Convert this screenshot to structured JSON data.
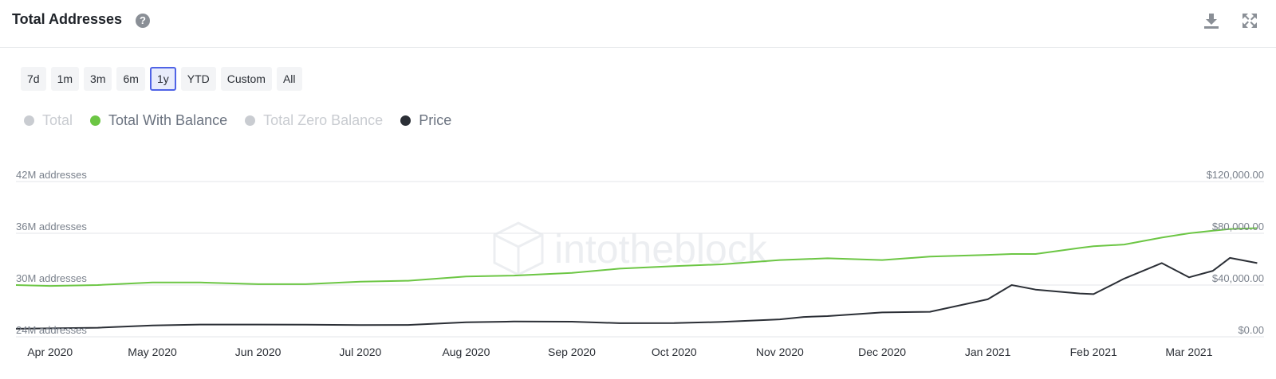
{
  "header": {
    "title": "Total Addresses",
    "help_icon": "question-circle-icon",
    "download_icon": "download-icon",
    "expand_icon": "expand-icon"
  },
  "time_ranges": [
    {
      "label": "7d",
      "active": false
    },
    {
      "label": "1m",
      "active": false
    },
    {
      "label": "3m",
      "active": false
    },
    {
      "label": "6m",
      "active": false
    },
    {
      "label": "1y",
      "active": true
    },
    {
      "label": "YTD",
      "active": false
    },
    {
      "label": "Custom",
      "active": false
    },
    {
      "label": "All",
      "active": false
    }
  ],
  "legend": [
    {
      "label": "Total",
      "color": "#c9ccd1",
      "enabled": false
    },
    {
      "label": "Total With Balance",
      "color": "#6cc644",
      "enabled": true
    },
    {
      "label": "Total Zero Balance",
      "color": "#c9ccd1",
      "enabled": false
    },
    {
      "label": "Price",
      "color": "#2b2f36",
      "enabled": true
    }
  ],
  "watermark": "intotheblock",
  "chart_data": {
    "type": "line",
    "x": [
      "2020-03-22",
      "2020-04-01",
      "2020-04-15",
      "2020-05-01",
      "2020-05-15",
      "2020-06-01",
      "2020-06-15",
      "2020-07-01",
      "2020-07-15",
      "2020-08-01",
      "2020-08-15",
      "2020-09-01",
      "2020-09-15",
      "2020-10-01",
      "2020-10-15",
      "2020-11-01",
      "2020-11-08",
      "2020-11-15",
      "2020-12-01",
      "2020-12-15",
      "2021-01-01",
      "2021-01-08",
      "2021-01-15",
      "2021-01-28",
      "2021-02-01",
      "2021-02-10",
      "2021-02-21",
      "2021-03-01",
      "2021-03-08",
      "2021-03-13",
      "2021-03-21"
    ],
    "series": [
      {
        "name": "Total With Balance",
        "axis": "left",
        "color": "#6cc644",
        "values": [
          30.0,
          29.9,
          30.0,
          30.3,
          30.3,
          30.1,
          30.1,
          30.4,
          30.5,
          31.0,
          31.1,
          31.4,
          31.9,
          32.2,
          32.4,
          32.9,
          33.0,
          33.1,
          32.9,
          33.3,
          33.5,
          33.6,
          33.6,
          34.3,
          34.5,
          34.7,
          35.5,
          36.0,
          36.3,
          36.5,
          36.6
        ]
      },
      {
        "name": "Price",
        "axis": "right",
        "color": "#2b2f36",
        "values": [
          6200,
          6500,
          7000,
          8800,
          9500,
          9500,
          9400,
          9100,
          9200,
          11200,
          11800,
          11700,
          10500,
          10600,
          11500,
          13500,
          15300,
          16000,
          18800,
          19300,
          29000,
          40000,
          36500,
          33500,
          33000,
          45000,
          57000,
          46000,
          51000,
          61000,
          57000
        ]
      }
    ],
    "x_tick_labels": [
      "Apr 2020",
      "May 2020",
      "Jun 2020",
      "Jul 2020",
      "Aug 2020",
      "Sep 2020",
      "Oct 2020",
      "Nov 2020",
      "Dec 2020",
      "Jan 2021",
      "Feb 2021",
      "Mar 2021"
    ],
    "y_left": {
      "ticks": [
        24,
        30,
        36,
        42
      ],
      "tick_labels": [
        "24M addresses",
        "30M addresses",
        "36M addresses",
        "42M addresses"
      ],
      "range": [
        24,
        42
      ]
    },
    "y_right": {
      "ticks": [
        0,
        40000,
        80000,
        120000
      ],
      "tick_labels": [
        "$0.00",
        "$40,000.00",
        "$80,000.00",
        "$120,000.00"
      ],
      "range": [
        0,
        120000
      ]
    },
    "grid": true,
    "legend_position": "top-left"
  }
}
